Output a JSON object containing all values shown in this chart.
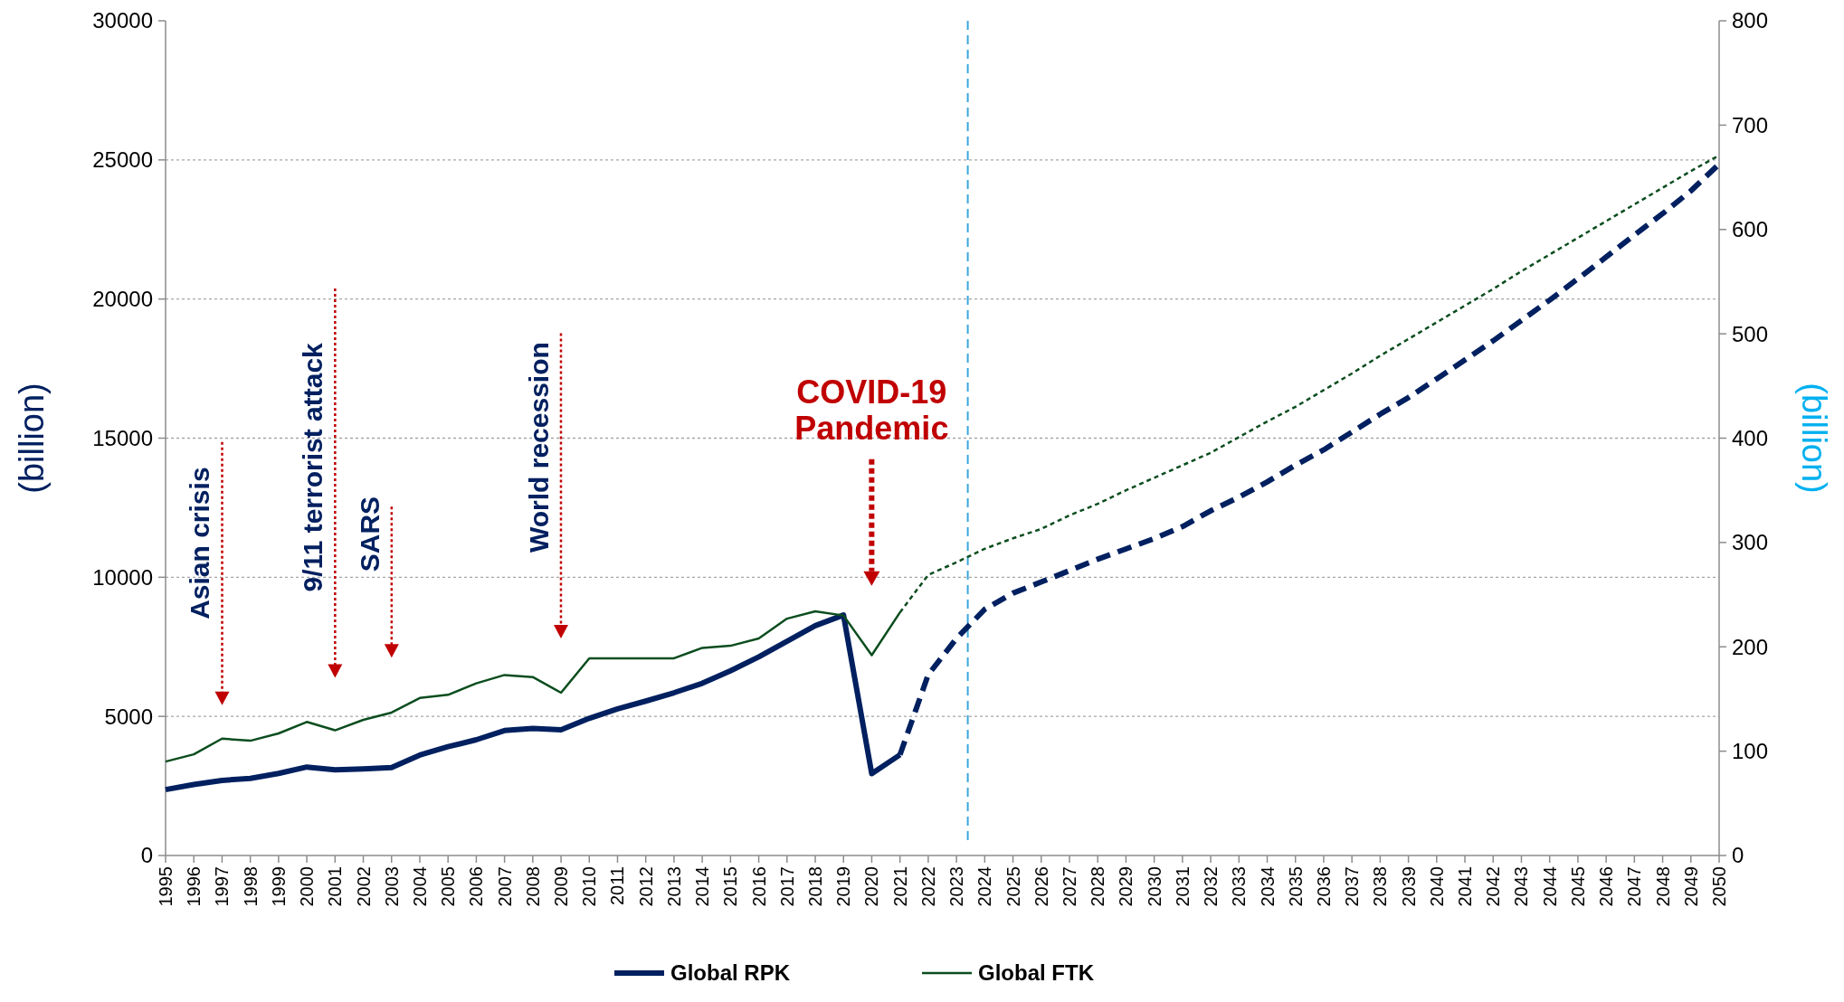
{
  "chart_data": {
    "type": "line",
    "ylabel": "(billion)",
    "y2label": "(billion)",
    "x": [
      1995,
      1996,
      1997,
      1998,
      1999,
      2000,
      2001,
      2002,
      2003,
      2004,
      2005,
      2006,
      2007,
      2008,
      2009,
      2010,
      2011,
      2012,
      2013,
      2014,
      2015,
      2016,
      2017,
      2018,
      2019,
      2020,
      2021,
      2022,
      2023,
      2024,
      2025,
      2026,
      2027,
      2028,
      2029,
      2030,
      2031,
      2032,
      2033,
      2034,
      2035,
      2036,
      2037,
      2038,
      2039,
      2040,
      2041,
      2042,
      2043,
      2044,
      2045,
      2046,
      2047,
      2048,
      2049,
      2050
    ],
    "xlim": [
      1995,
      2050
    ],
    "xticks": [
      1995,
      1996,
      1997,
      1998,
      1999,
      2000,
      2001,
      2002,
      2003,
      2004,
      2005,
      2006,
      2007,
      2008,
      2009,
      2010,
      2011,
      2012,
      2013,
      2014,
      2015,
      2016,
      2017,
      2018,
      2019,
      2020,
      2021,
      2022,
      2023,
      2024,
      2025,
      2026,
      2027,
      2028,
      2029,
      2030,
      2031,
      2032,
      2033,
      2034,
      2035,
      2036,
      2037,
      2038,
      2039,
      2040,
      2041,
      2042,
      2043,
      2044,
      2045,
      2046,
      2047,
      2048,
      2049,
      2050
    ],
    "ylim": [
      0,
      30000
    ],
    "yticks": [
      0,
      5000,
      10000,
      15000,
      20000,
      25000,
      30000
    ],
    "y2lim": [
      0,
      800
    ],
    "y2ticks": [
      0,
      100,
      200,
      300,
      400,
      500,
      600,
      700,
      800
    ],
    "grid": "y",
    "legend": "bottom",
    "series": [
      {
        "name": "Global RPK",
        "color": "#002060",
        "line_style": "solid",
        "values": [
          2370,
          2550,
          2700,
          2770,
          2950,
          3180,
          3080,
          3110,
          3160,
          3610,
          3910,
          4160,
          4490,
          4570,
          4520,
          4930,
          5270,
          5550,
          5850,
          6190,
          6640,
          7140,
          7700,
          8260,
          8640,
          2940,
          3620,
          null,
          null,
          null,
          null,
          null,
          null,
          null,
          null,
          null,
          null,
          null,
          null,
          null,
          null,
          null,
          null,
          null,
          null,
          null,
          null,
          null,
          null,
          null,
          null,
          null,
          null,
          null,
          null,
          null
        ]
      },
      {
        "color": "#002060",
        "line_style": "dashed",
        "values": [
          null,
          null,
          null,
          null,
          null,
          null,
          null,
          null,
          null,
          null,
          null,
          null,
          null,
          null,
          null,
          null,
          null,
          null,
          null,
          null,
          null,
          null,
          null,
          null,
          null,
          null,
          3620,
          6500,
          7800,
          8850,
          9430,
          9830,
          10240,
          10650,
          11020,
          11390,
          11820,
          12390,
          12880,
          13430,
          14030,
          14580,
          15220,
          15860,
          16460,
          17130,
          17810,
          18500,
          19230,
          19960,
          20730,
          21510,
          22300,
          23070,
          23890,
          24850
        ]
      },
      {
        "name": "Global FTK",
        "color": "#0b4d1e",
        "axis": "y2",
        "line_style": "solid",
        "values": [
          90,
          97,
          112,
          110,
          117,
          128,
          120,
          130,
          137,
          151,
          154,
          165,
          173,
          171,
          156,
          189,
          189,
          189,
          189,
          199,
          201,
          208,
          227,
          234,
          230,
          192,
          233,
          null,
          null,
          null,
          null,
          null,
          null,
          null,
          null,
          null,
          null,
          null,
          null,
          null,
          null,
          null,
          null,
          null,
          null,
          null,
          null,
          null,
          null,
          null,
          null,
          null,
          null,
          null,
          null,
          null
        ]
      },
      {
        "color": "#0b4d1e",
        "axis": "y2",
        "line_style": "dashed",
        "values": [
          null,
          null,
          null,
          null,
          null,
          null,
          null,
          null,
          null,
          null,
          null,
          null,
          null,
          null,
          null,
          null,
          null,
          null,
          null,
          null,
          null,
          null,
          null,
          null,
          null,
          null,
          233,
          269,
          281,
          294,
          304,
          313,
          326,
          337,
          350,
          362,
          374,
          386,
          401,
          416,
          430,
          446,
          462,
          479,
          495,
          511,
          527,
          543,
          560,
          576,
          592,
          608,
          624,
          640,
          656,
          671
        ]
      }
    ],
    "ref_lines": [
      {
        "axis": "x",
        "value": 2023.4,
        "color": "#3aa6dc",
        "line_style": "dashed"
      }
    ],
    "annotations": [
      "Asian crisis",
      "9/11 terrorist attack",
      "SARS",
      "World recession",
      "COVID-19 Pandemic"
    ]
  }
}
